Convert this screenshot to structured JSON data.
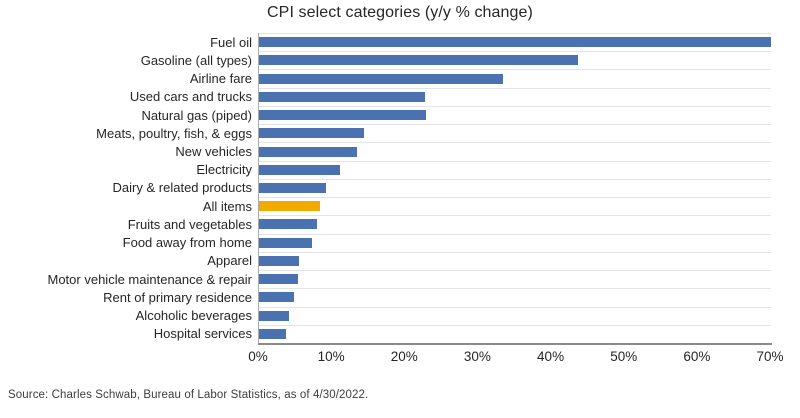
{
  "chart_data": {
    "type": "bar",
    "orientation": "horizontal",
    "title": "CPI select categories (y/y % change)",
    "categories": [
      "Fuel oil",
      "Gasoline (all types)",
      "Airline fare",
      "Used cars and trucks",
      "Natural gas (piped)",
      "Meats, poultry, fish, & eggs",
      "New vehicles",
      "Electricity",
      "Dairy & related products",
      "All items",
      "Fruits and vegetables",
      "Food away from home",
      "Apparel",
      "Motor vehicle maintenance & repair",
      "Rent of primary residence",
      "Alcoholic beverages",
      "Hospital services"
    ],
    "values": [
      70,
      43.6,
      33.3,
      22.7,
      22.8,
      14.4,
      13.4,
      11.1,
      9.2,
      8.4,
      7.9,
      7.3,
      5.5,
      5.3,
      4.8,
      4.1,
      3.7
    ],
    "highlight_category": "All items",
    "colors": {
      "bar": "#4a72b0",
      "highlight": "#f2a900",
      "gridline": "#e4e4e4",
      "axis_line": "#8a8a8a",
      "text": "#262626"
    },
    "xlim": [
      0,
      70
    ],
    "x_tick_labels": [
      "0%",
      "10%",
      "20%",
      "30%",
      "40%",
      "50%",
      "60%",
      "70%"
    ],
    "xlabel": "",
    "ylabel": "",
    "legend": null,
    "grid": "horizontal-category-separators"
  },
  "source_note": "Source: Charles Schwab, Bureau of Labor Statistics, as of 4/30/2022."
}
